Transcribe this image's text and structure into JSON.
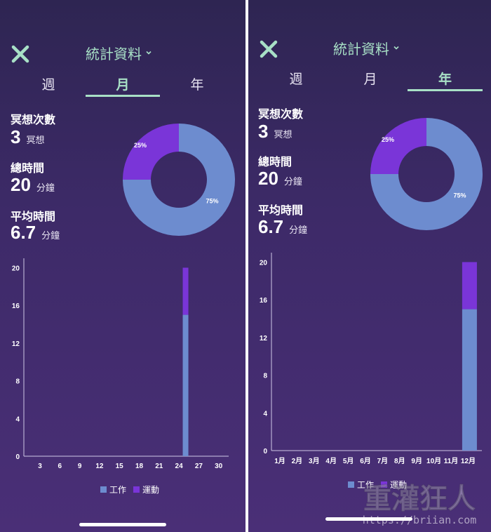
{
  "colors": {
    "accent": "#a8e0c6",
    "work": "#6d8ccf",
    "sport": "#7a35d8",
    "bg_top": "#2e2552",
    "bg_bottom": "#4a2f77"
  },
  "left": {
    "header": {
      "title": "統計資料",
      "close_icon": "close-icon",
      "dropdown_icon": "chevron-down-icon"
    },
    "tabs": [
      {
        "label": "週",
        "active": false
      },
      {
        "label": "月",
        "active": true
      },
      {
        "label": "年",
        "active": false
      }
    ],
    "stats": {
      "sessions_label": "冥想次數",
      "sessions_value": "3",
      "sessions_unit": "冥想",
      "total_label": "總時間",
      "total_value": "20",
      "total_unit": "分鐘",
      "avg_label": "平均時間",
      "avg_value": "6.7",
      "avg_unit": "分鐘"
    },
    "donut": {
      "slices": [
        {
          "name": "工作",
          "label": "75%",
          "value": 75
        },
        {
          "name": "運動",
          "label": "25%",
          "value": 25
        }
      ]
    },
    "chart_data": {
      "type": "bar",
      "stacked": true,
      "categories": [
        "3",
        "6",
        "9",
        "12",
        "15",
        "18",
        "21",
        "24",
        "27",
        "30"
      ],
      "ylim": [
        0,
        21
      ],
      "yticks": [
        "0",
        "4",
        "8",
        "12",
        "16",
        "20"
      ],
      "series": [
        {
          "name": "工作",
          "points": [
            {
              "x": 25,
              "y": 15
            }
          ]
        },
        {
          "name": "運動",
          "points": [
            {
              "x": 25,
              "y": 5
            }
          ]
        }
      ],
      "legend": "bottom-center"
    }
  },
  "right": {
    "header": {
      "title": "統計資料",
      "close_icon": "close-icon",
      "dropdown_icon": "chevron-down-icon"
    },
    "tabs": [
      {
        "label": "週",
        "active": false
      },
      {
        "label": "月",
        "active": false
      },
      {
        "label": "年",
        "active": true
      }
    ],
    "stats": {
      "sessions_label": "冥想次數",
      "sessions_value": "3",
      "sessions_unit": "冥想",
      "total_label": "總時間",
      "total_value": "20",
      "total_unit": "分鐘",
      "avg_label": "平均時間",
      "avg_value": "6.7",
      "avg_unit": "分鐘"
    },
    "donut": {
      "slices": [
        {
          "name": "工作",
          "label": "75%",
          "value": 75
        },
        {
          "name": "運動",
          "label": "25%",
          "value": 25
        }
      ]
    },
    "chart_data": {
      "type": "bar",
      "stacked": true,
      "categories": [
        "1月",
        "2月",
        "3月",
        "4月",
        "5月",
        "6月",
        "7月",
        "8月",
        "9月",
        "10月",
        "11月",
        "12月"
      ],
      "ylim": [
        0,
        21
      ],
      "yticks": [
        "0",
        "4",
        "8",
        "12",
        "16",
        "20"
      ],
      "series": [
        {
          "name": "工作",
          "values": [
            0,
            0,
            0,
            0,
            0,
            0,
            0,
            0,
            0,
            0,
            0,
            15
          ]
        },
        {
          "name": "運動",
          "values": [
            0,
            0,
            0,
            0,
            0,
            0,
            0,
            0,
            0,
            0,
            0,
            5
          ]
        }
      ],
      "legend": "bottom-center"
    }
  },
  "watermark": {
    "text": "重灌狂人",
    "url": "https://briian.com"
  }
}
